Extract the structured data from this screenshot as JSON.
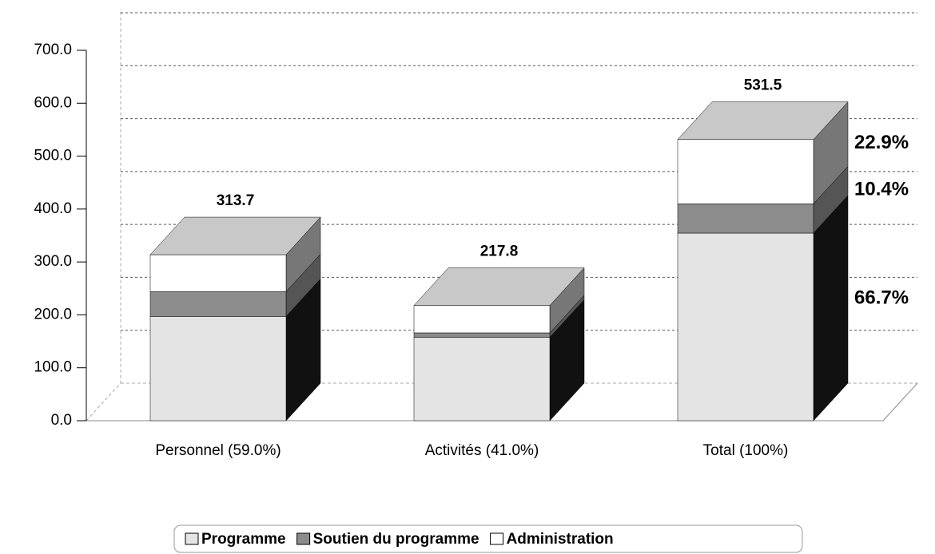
{
  "chart_data": {
    "type": "stacked-bar-3d",
    "categories": [
      "Personnel (59.0%)",
      "Activités (41.0%)",
      "Total (100%)"
    ],
    "series": [
      {
        "name": "Programme",
        "color": "#e4e4e4",
        "side": "#111111",
        "values": [
          197.0,
          157.5,
          354.5
        ]
      },
      {
        "name": "Soutien du programme",
        "color": "#8c8c8c",
        "side": "#555555",
        "values": [
          46.8,
          8.5,
          55.3
        ]
      },
      {
        "name": "Administration",
        "color": "#ffffff",
        "side": "#777777",
        "values": [
          69.9,
          51.8,
          121.7
        ]
      }
    ],
    "totals": [
      313.7,
      217.8,
      531.5
    ],
    "total_shares": {
      "values": [
        66.7,
        10.4,
        22.9
      ],
      "value_labels": [
        "66.7%",
        "10.4%",
        "22.9%"
      ]
    },
    "ylim": [
      0,
      700
    ],
    "yticks": [
      {
        "value": 0,
        "label": "0.0"
      },
      {
        "value": 100,
        "label": "100.0"
      },
      {
        "value": 200,
        "label": "200.0"
      },
      {
        "value": 300,
        "label": "300.0"
      },
      {
        "value": 400,
        "label": "400.0"
      },
      {
        "value": 500,
        "label": "500.0"
      },
      {
        "value": 600,
        "label": "600.0"
      },
      {
        "value": 700,
        "label": "700.0"
      }
    ],
    "grid": true
  }
}
